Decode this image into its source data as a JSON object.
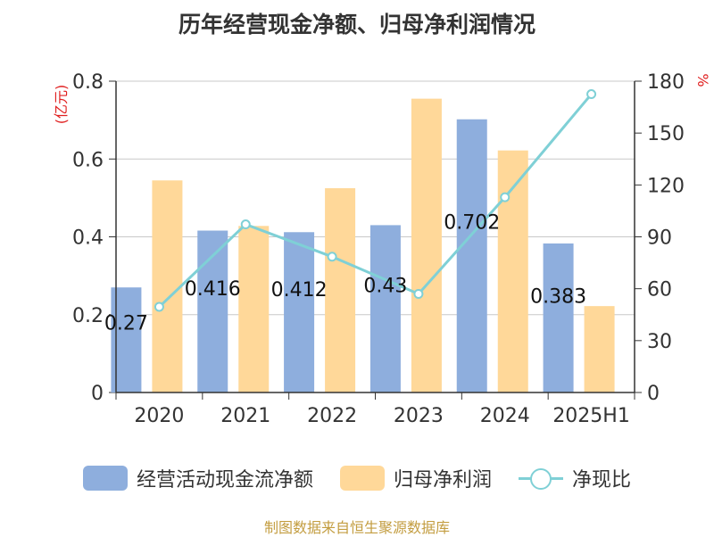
{
  "colors": {
    "cash_flow": "#8eaedd",
    "net_profit": "#ffd899",
    "ratio_line": "#7fd0d6",
    "axis_unit": "#e02020",
    "source": "#c39d40"
  },
  "chart_data": {
    "type": "bar",
    "title": "历年经营现金净额、归母净利润情况",
    "categories": [
      "2020",
      "2021",
      "2022",
      "2023",
      "2024",
      "2025H1"
    ],
    "series": [
      {
        "name": "经营活动现金流净额",
        "type": "bar",
        "axis": "left",
        "values": [
          0.27,
          0.416,
          0.412,
          0.43,
          0.702,
          0.383
        ],
        "labels": [
          "0.27",
          "0.416",
          "0.412",
          "0.43",
          "0.702",
          "0.383"
        ]
      },
      {
        "name": "归母净利润",
        "type": "bar",
        "axis": "left",
        "values": [
          0.545,
          0.428,
          0.525,
          0.755,
          0.622,
          0.222
        ]
      },
      {
        "name": "净现比",
        "type": "line",
        "axis": "right",
        "values": [
          49.5,
          97.2,
          78.5,
          57,
          112.9,
          172.5
        ]
      }
    ],
    "y_left": {
      "unit": "(亿元)",
      "ylim": [
        0,
        0.8
      ],
      "ticks": [
        "0",
        "0.2",
        "0.4",
        "0.6",
        "0.8"
      ]
    },
    "y_right": {
      "unit": "%",
      "ylim": [
        0,
        180
      ],
      "ticks": [
        "0",
        "30",
        "60",
        "90",
        "120",
        "150",
        "180"
      ]
    },
    "grid": true,
    "legend_position": "bottom"
  },
  "footer": {
    "source": "制图数据来自恒生聚源数据库"
  }
}
